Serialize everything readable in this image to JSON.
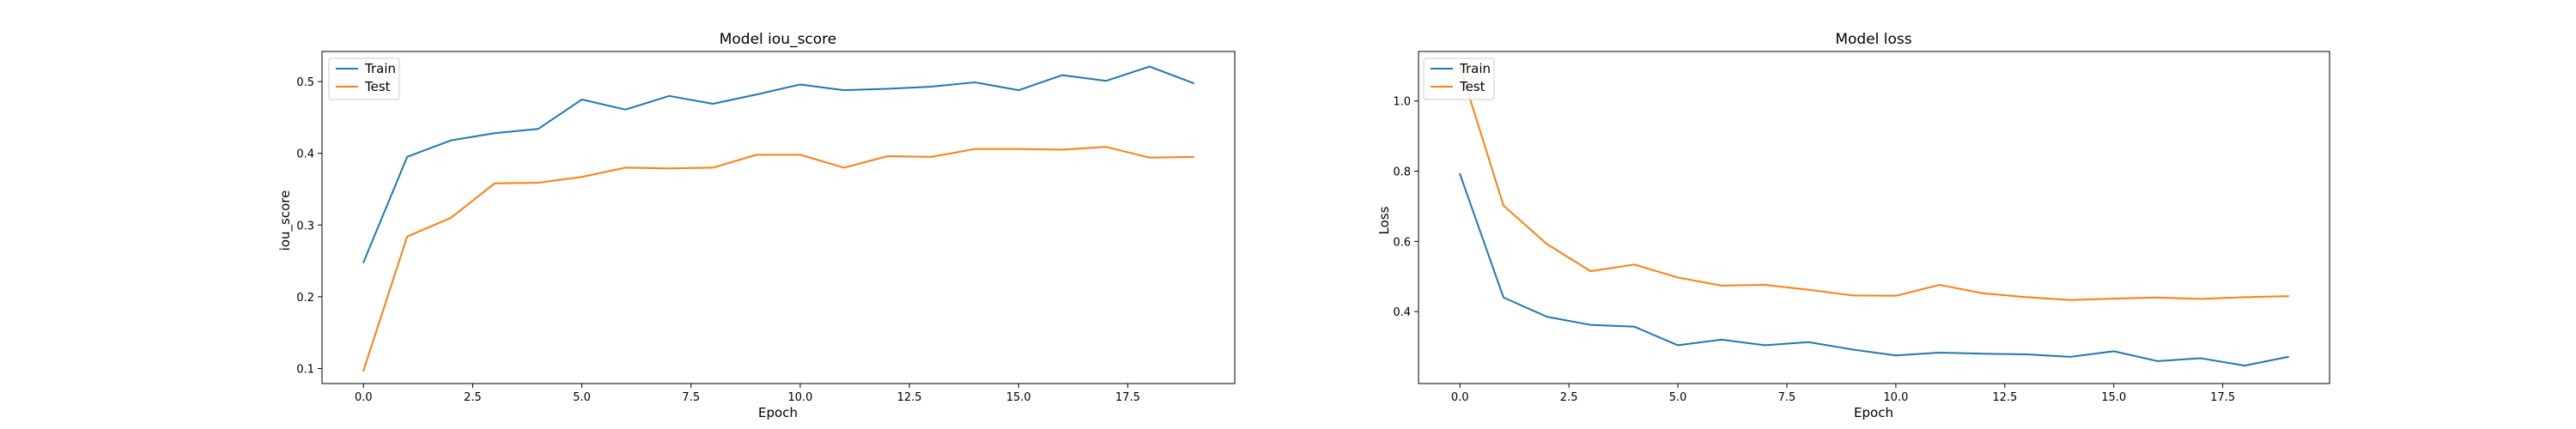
{
  "chart_data": [
    {
      "type": "line",
      "title": "Model iou_score",
      "xlabel": "Epoch",
      "ylabel": "iou_score",
      "xlim": [
        -0.95,
        19.95
      ],
      "ylim": [
        0.079,
        0.542
      ],
      "xticks": [
        0.0,
        2.5,
        5.0,
        7.5,
        10.0,
        12.5,
        15.0,
        17.5
      ],
      "xtick_labels": [
        "0.0",
        "2.5",
        "5.0",
        "7.5",
        "10.0",
        "12.5",
        "15.0",
        "17.5"
      ],
      "yticks": [
        0.1,
        0.2,
        0.3,
        0.4,
        0.5
      ],
      "ytick_labels": [
        "0.1",
        "0.2",
        "0.3",
        "0.4",
        "0.5"
      ],
      "legend": "upper-left",
      "grid": false,
      "x": [
        0,
        1,
        2,
        3,
        4,
        5,
        6,
        7,
        8,
        9,
        10,
        11,
        12,
        13,
        14,
        15,
        16,
        17,
        18,
        19
      ],
      "series": [
        {
          "name": "Train",
          "color": "#1f77b4",
          "values": [
            0.248,
            0.395,
            0.418,
            0.428,
            0.434,
            0.475,
            0.461,
            0.48,
            0.469,
            0.482,
            0.496,
            0.488,
            0.49,
            0.493,
            0.499,
            0.488,
            0.509,
            0.501,
            0.521,
            0.498
          ]
        },
        {
          "name": "Test",
          "color": "#ff7f0e",
          "values": [
            0.097,
            0.284,
            0.31,
            0.358,
            0.359,
            0.367,
            0.38,
            0.379,
            0.38,
            0.398,
            0.398,
            0.38,
            0.396,
            0.395,
            0.406,
            0.406,
            0.405,
            0.409,
            0.394,
            0.395
          ]
        }
      ]
    },
    {
      "type": "line",
      "title": "Model loss",
      "xlabel": "Epoch",
      "ylabel": "Loss",
      "xlim": [
        -0.95,
        19.95
      ],
      "ylim": [
        0.195,
        1.141
      ],
      "xticks": [
        0.0,
        2.5,
        5.0,
        7.5,
        10.0,
        12.5,
        15.0,
        17.5
      ],
      "xtick_labels": [
        "0.0",
        "2.5",
        "5.0",
        "7.5",
        "10.0",
        "12.5",
        "15.0",
        "17.5"
      ],
      "yticks": [
        0.4,
        0.6,
        0.8,
        1.0
      ],
      "ytick_labels": [
        "0.4",
        "0.6",
        "0.8",
        "1.0"
      ],
      "legend": "upper-left",
      "grid": false,
      "x": [
        0,
        1,
        2,
        3,
        4,
        5,
        6,
        7,
        8,
        9,
        10,
        11,
        12,
        13,
        14,
        15,
        16,
        17,
        18,
        19
      ],
      "series": [
        {
          "name": "Train",
          "color": "#1f77b4",
          "values": [
            0.792,
            0.44,
            0.385,
            0.362,
            0.357,
            0.304,
            0.32,
            0.304,
            0.313,
            0.292,
            0.275,
            0.283,
            0.28,
            0.278,
            0.271,
            0.287,
            0.259,
            0.267,
            0.246,
            0.271
          ]
        },
        {
          "name": "Test",
          "color": "#ff7f0e",
          "values": [
            1.098,
            0.702,
            0.592,
            0.515,
            0.534,
            0.497,
            0.474,
            0.476,
            0.462,
            0.446,
            0.445,
            0.476,
            0.452,
            0.441,
            0.433,
            0.437,
            0.44,
            0.436,
            0.441,
            0.444
          ]
        }
      ]
    }
  ]
}
